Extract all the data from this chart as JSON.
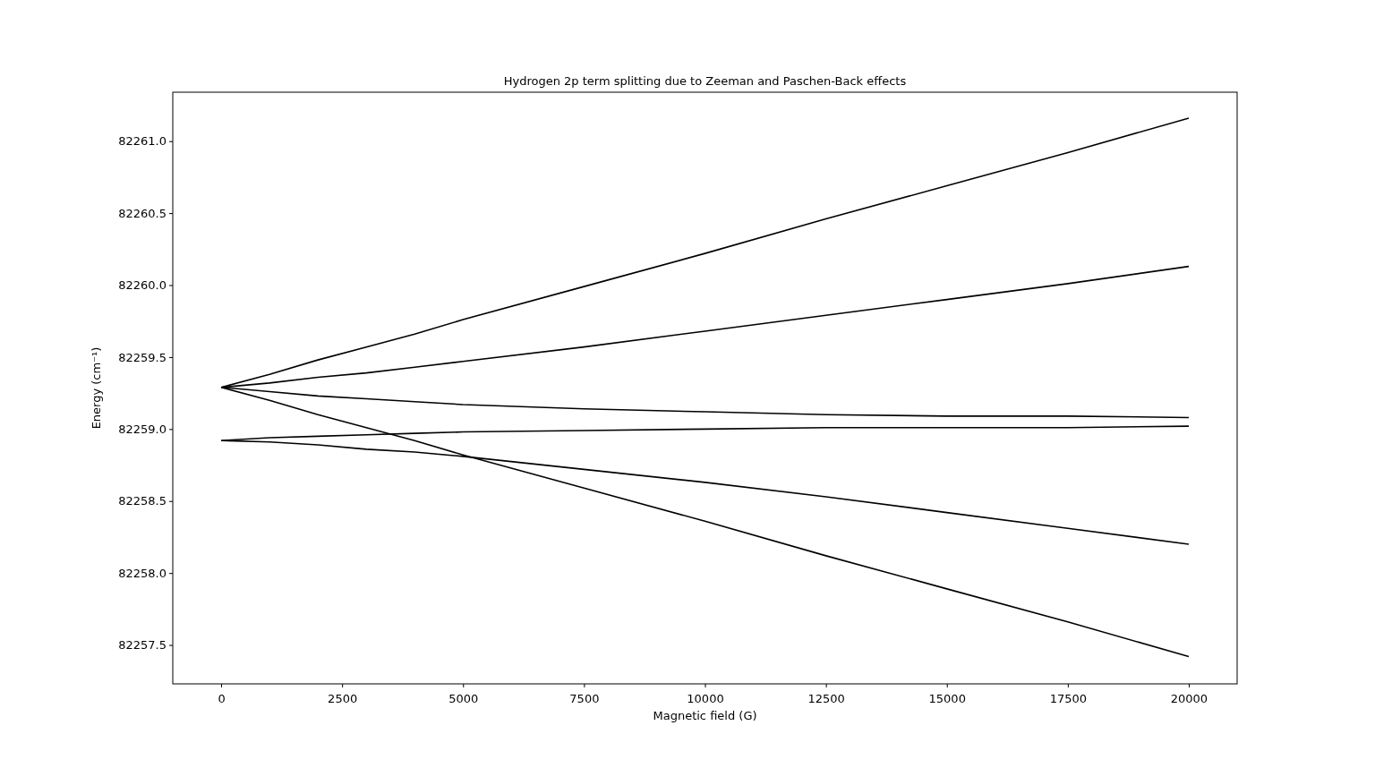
{
  "chart_data": {
    "type": "line",
    "title": "Hydrogen 2p term splitting due to Zeeman and Paschen-Back effects",
    "xlabel": "Magnetic field (G)",
    "ylabel": "Energy (cm⁻¹)",
    "x": [
      0,
      1000,
      2000,
      3000,
      4000,
      5000,
      7500,
      10000,
      12500,
      15000,
      17500,
      20000
    ],
    "series": [
      {
        "color": "#000000",
        "values": [
          82259.29,
          82259.38,
          82259.48,
          82259.57,
          82259.66,
          82259.76,
          82259.99,
          82260.22,
          82260.46,
          82260.69,
          82260.92,
          82261.16
        ]
      },
      {
        "color": "#000000",
        "values": [
          82259.29,
          82259.32,
          82259.36,
          82259.39,
          82259.43,
          82259.47,
          82259.57,
          82259.68,
          82259.79,
          82259.9,
          82260.01,
          82260.13
        ]
      },
      {
        "color": "#000000",
        "values": [
          82259.29,
          82259.26,
          82259.23,
          82259.21,
          82259.19,
          82259.17,
          82259.14,
          82259.12,
          82259.1,
          82259.09,
          82259.09,
          82259.08
        ]
      },
      {
        "color": "#000000",
        "values": [
          82258.92,
          82258.94,
          82258.95,
          82258.96,
          82258.97,
          82258.98,
          82258.99,
          82259.0,
          82259.01,
          82259.01,
          82259.01,
          82259.02
        ]
      },
      {
        "color": "#000000",
        "values": [
          82258.92,
          82258.91,
          82258.89,
          82258.86,
          82258.84,
          82258.81,
          82258.72,
          82258.63,
          82258.53,
          82258.42,
          82258.31,
          82258.2
        ]
      },
      {
        "color": "#000000",
        "values": [
          82259.29,
          82259.2,
          82259.1,
          82259.01,
          82258.92,
          82258.82,
          82258.59,
          82258.36,
          82258.12,
          82257.89,
          82257.66,
          82257.42
        ]
      }
    ],
    "xlim": [
      -1000,
      21000
    ],
    "ylim": [
      82257.23,
      82261.34
    ],
    "xticks": [
      0,
      2500,
      5000,
      7500,
      10000,
      12500,
      15000,
      17500,
      20000
    ],
    "yticks": [
      {
        "value": 82257.5,
        "label": "82257.5"
      },
      {
        "value": 82258,
        "label": "82258.0"
      },
      {
        "value": 82258.5,
        "label": "82258.5"
      },
      {
        "value": 82259,
        "label": "82259.0"
      },
      {
        "value": 82259.5,
        "label": "82259.5"
      },
      {
        "value": 82260,
        "label": "82260.0"
      },
      {
        "value": 82260.5,
        "label": "82260.5"
      },
      {
        "value": 82261,
        "label": "82261.0"
      }
    ],
    "grid": false,
    "marker": "none",
    "line_style": "solid"
  }
}
